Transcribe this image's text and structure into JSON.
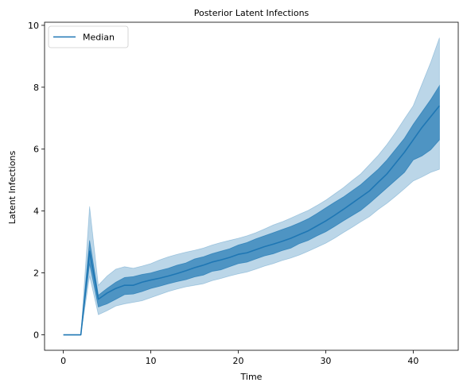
{
  "chart_data": {
    "type": "area",
    "title": "Posterior Latent Infections",
    "xlabel": "Time",
    "ylabel": "Latent Infections",
    "xlim": [
      -2.15,
      45.15
    ],
    "ylim": [
      -0.5,
      10.1
    ],
    "xticks": [
      0,
      10,
      20,
      30,
      40
    ],
    "yticks": [
      0,
      2,
      4,
      6,
      8,
      10
    ],
    "grid": false,
    "legend": {
      "position": "top-left",
      "entries": [
        "Median"
      ]
    },
    "colors": {
      "median_line": "#1f77b4",
      "inner_band": "#1f77b4",
      "outer_band": "#1f77b4"
    },
    "x": [
      0,
      1,
      2,
      3,
      4,
      5,
      6,
      7,
      8,
      9,
      10,
      11,
      12,
      13,
      14,
      15,
      16,
      17,
      18,
      19,
      20,
      21,
      22,
      23,
      24,
      25,
      26,
      27,
      28,
      29,
      30,
      31,
      32,
      33,
      34,
      35,
      36,
      37,
      38,
      39,
      40,
      41,
      42,
      43
    ],
    "series": [
      {
        "name": "Median",
        "role": "line",
        "values": [
          0,
          0,
          0,
          2.7,
          1.15,
          1.35,
          1.5,
          1.6,
          1.6,
          1.7,
          1.77,
          1.83,
          1.9,
          1.98,
          2.07,
          2.17,
          2.25,
          2.35,
          2.42,
          2.5,
          2.6,
          2.65,
          2.75,
          2.85,
          2.93,
          3.02,
          3.12,
          3.24,
          3.36,
          3.52,
          3.68,
          3.86,
          4.05,
          4.25,
          4.45,
          4.65,
          4.93,
          5.2,
          5.55,
          5.9,
          6.3,
          6.7,
          7.05,
          7.4
        ]
      },
      {
        "role": "band",
        "lower": [
          0,
          0,
          0,
          2.3,
          0.9,
          1.0,
          1.15,
          1.3,
          1.32,
          1.4,
          1.5,
          1.57,
          1.65,
          1.72,
          1.78,
          1.87,
          1.93,
          2.05,
          2.1,
          2.2,
          2.3,
          2.35,
          2.45,
          2.55,
          2.62,
          2.72,
          2.8,
          2.95,
          3.05,
          3.2,
          3.33,
          3.5,
          3.68,
          3.85,
          4.02,
          4.25,
          4.5,
          4.75,
          5.0,
          5.25,
          5.65,
          5.78,
          5.98,
          6.3
        ],
        "upper": [
          0,
          0,
          0,
          3.05,
          1.28,
          1.5,
          1.7,
          1.85,
          1.88,
          1.95,
          2.0,
          2.08,
          2.15,
          2.25,
          2.32,
          2.45,
          2.52,
          2.62,
          2.7,
          2.78,
          2.9,
          2.98,
          3.1,
          3.2,
          3.3,
          3.4,
          3.5,
          3.62,
          3.75,
          3.92,
          4.1,
          4.28,
          4.45,
          4.65,
          4.85,
          5.1,
          5.35,
          5.65,
          6.0,
          6.35,
          6.8,
          7.2,
          7.6,
          8.05
        ]
      },
      {
        "role": "band",
        "lower": [
          0,
          0,
          0,
          1.9,
          0.65,
          0.78,
          0.93,
          1.0,
          1.05,
          1.1,
          1.2,
          1.3,
          1.4,
          1.48,
          1.55,
          1.6,
          1.65,
          1.75,
          1.82,
          1.9,
          1.97,
          2.03,
          2.12,
          2.22,
          2.3,
          2.4,
          2.48,
          2.58,
          2.7,
          2.83,
          2.96,
          3.12,
          3.3,
          3.47,
          3.65,
          3.82,
          4.05,
          4.25,
          4.48,
          4.72,
          4.97,
          5.1,
          5.25,
          5.35
        ],
        "upper": [
          0,
          0,
          0,
          4.15,
          1.6,
          1.9,
          2.12,
          2.2,
          2.15,
          2.22,
          2.3,
          2.42,
          2.52,
          2.6,
          2.67,
          2.73,
          2.8,
          2.9,
          2.98,
          3.05,
          3.12,
          3.2,
          3.3,
          3.42,
          3.55,
          3.65,
          3.77,
          3.9,
          4.02,
          4.18,
          4.35,
          4.55,
          4.75,
          4.98,
          5.2,
          5.5,
          5.8,
          6.15,
          6.55,
          6.98,
          7.4,
          8.1,
          8.8,
          9.6
        ]
      }
    ]
  }
}
